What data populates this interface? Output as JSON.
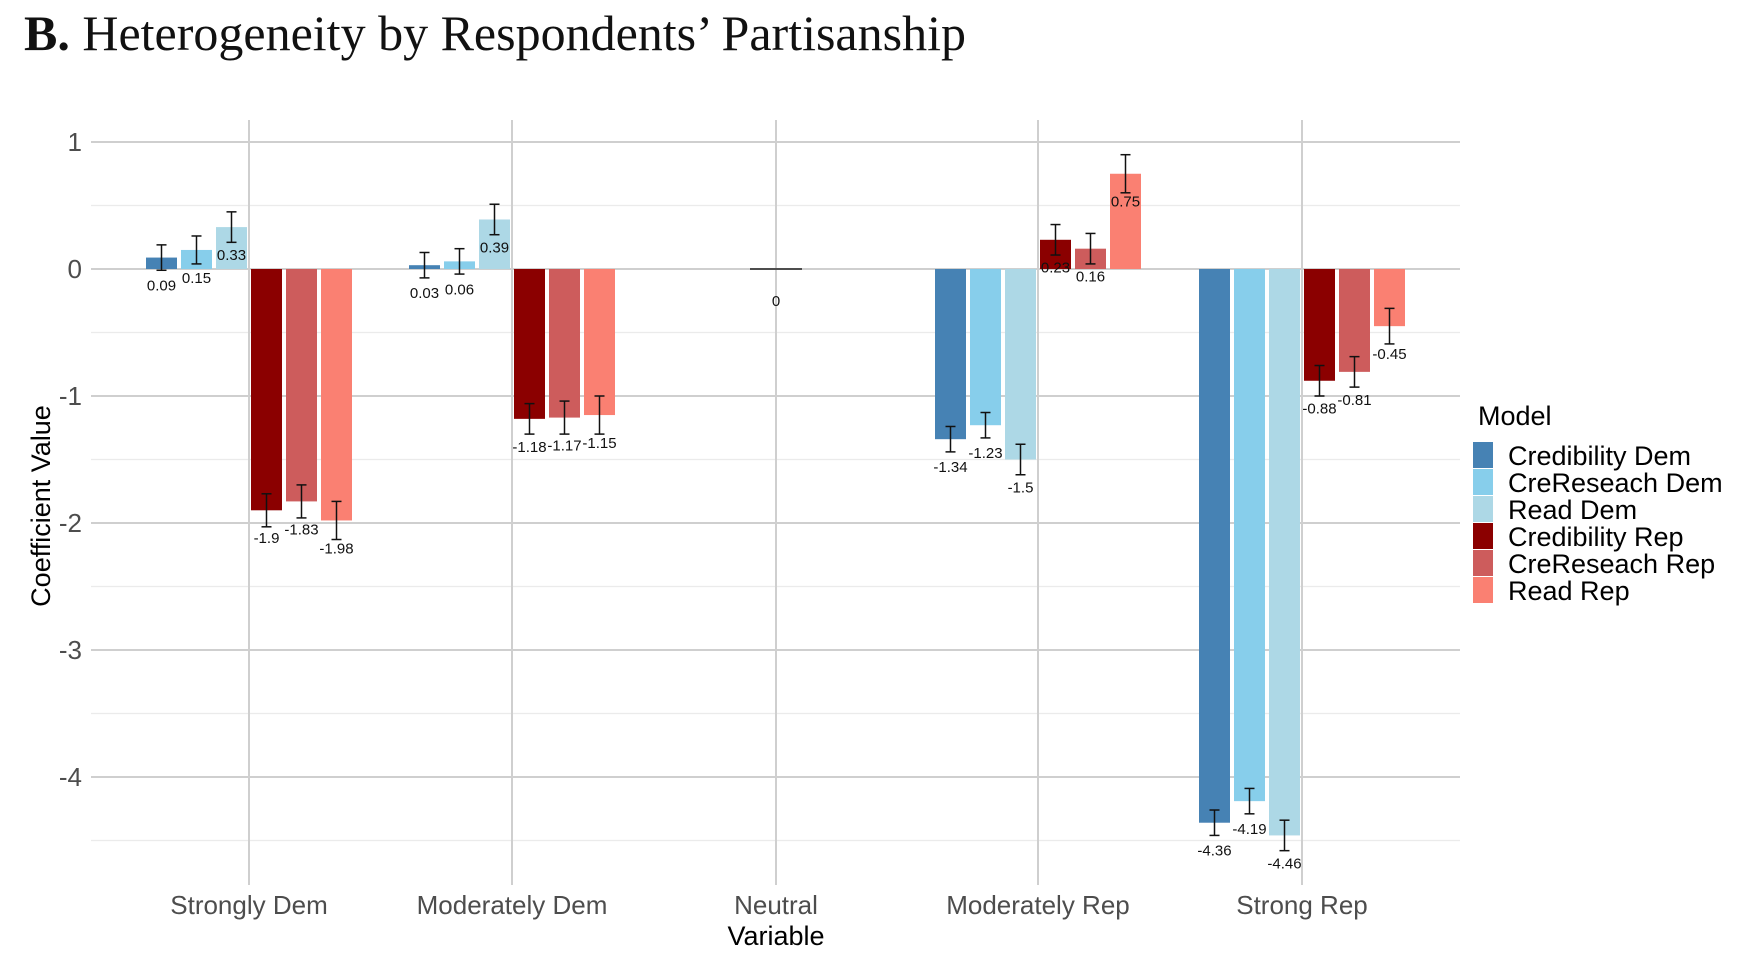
{
  "chart_data": {
    "type": "bar",
    "title_prefix": "B.",
    "title": "Heterogeneity by Respondents’ Partisanship",
    "xlabel": "Variable",
    "ylabel": "Coefficient Value",
    "ylim": [
      -4.5,
      1
    ],
    "yticks": [
      1,
      0,
      -1,
      -2,
      -3,
      -4
    ],
    "grid": true,
    "legend_title": "Model",
    "legend_position": "right",
    "categories": [
      "Strongly Dem",
      "Moderately Dem",
      "Neutral",
      "Moderately Rep",
      "Strong Rep"
    ],
    "series": [
      {
        "name": "Credibility Dem",
        "color": "#4682B4",
        "values": [
          0.09,
          0.03,
          0,
          -1.34,
          -4.36
        ],
        "err": [
          0.1,
          0.1,
          0,
          0.1,
          0.1
        ]
      },
      {
        "name": "CreReseach Dem",
        "color": "#87CEEB",
        "values": [
          0.15,
          0.06,
          0,
          -1.23,
          -4.19
        ],
        "err": [
          0.11,
          0.1,
          0,
          0.1,
          0.1
        ]
      },
      {
        "name": "Read Dem",
        "color": "#ADD8E6",
        "values": [
          0.33,
          0.39,
          0,
          -1.5,
          -4.46
        ],
        "err": [
          0.12,
          0.12,
          0,
          0.12,
          0.12
        ]
      },
      {
        "name": "Credibility Rep",
        "color": "#8B0000",
        "values": [
          -1.9,
          -1.18,
          0,
          0.23,
          -0.88
        ],
        "err": [
          0.13,
          0.12,
          0,
          0.12,
          0.12
        ]
      },
      {
        "name": "CreReseach Rep",
        "color": "#CD5C5C",
        "values": [
          -1.83,
          -1.17,
          0,
          0.16,
          -0.81
        ],
        "err": [
          0.13,
          0.13,
          0,
          0.12,
          0.12
        ]
      },
      {
        "name": "Read Rep",
        "color": "#FA8072",
        "values": [
          -1.98,
          -1.15,
          0,
          0.75,
          -0.45
        ],
        "err": [
          0.15,
          0.15,
          0,
          0.15,
          0.14
        ]
      }
    ],
    "neutral_label": "0"
  }
}
